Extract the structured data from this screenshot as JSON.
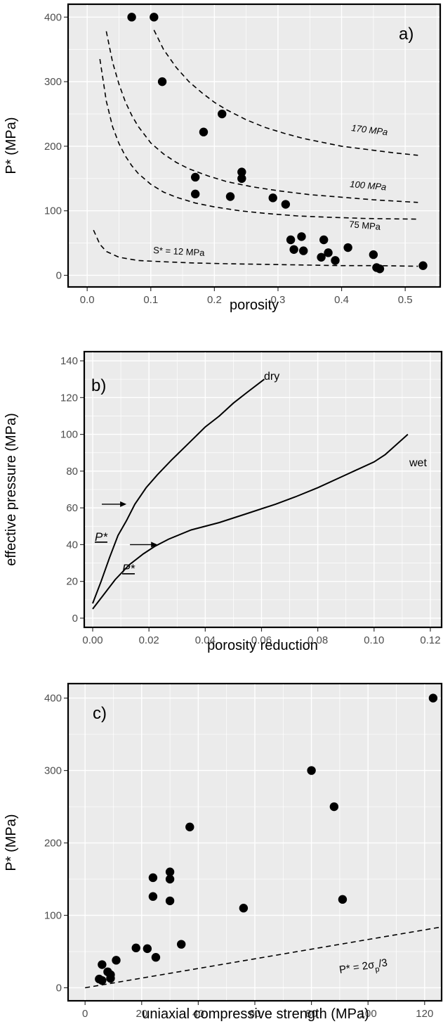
{
  "chart_data": [
    {
      "id": "a",
      "type": "scatter",
      "panel_label": "a)",
      "xlabel": "porosity",
      "ylabel": "P* (MPa)",
      "xlim": [
        -0.03,
        0.555
      ],
      "ylim": [
        -18,
        420
      ],
      "xticks": [
        0.0,
        0.1,
        0.2,
        0.3,
        0.4,
        0.5
      ],
      "xtick_labels": [
        "0.0",
        "0.1",
        "0.2",
        "0.3",
        "0.4",
        "0.5"
      ],
      "yticks": [
        0,
        100,
        200,
        300,
        400
      ],
      "ytick_labels": [
        "0",
        "100",
        "200",
        "300",
        "400"
      ],
      "grid": true,
      "points": [
        [
          0.07,
          400
        ],
        [
          0.105,
          400
        ],
        [
          0.118,
          300
        ],
        [
          0.183,
          222
        ],
        [
          0.212,
          250
        ],
        [
          0.17,
          152
        ],
        [
          0.17,
          126
        ],
        [
          0.243,
          160
        ],
        [
          0.243,
          150
        ],
        [
          0.225,
          122
        ],
        [
          0.292,
          120
        ],
        [
          0.312,
          110
        ],
        [
          0.32,
          55
        ],
        [
          0.325,
          40
        ],
        [
          0.337,
          60
        ],
        [
          0.34,
          38
        ],
        [
          0.368,
          28
        ],
        [
          0.372,
          55
        ],
        [
          0.379,
          35
        ],
        [
          0.39,
          23
        ],
        [
          0.41,
          43
        ],
        [
          0.45,
          32
        ],
        [
          0.455,
          12
        ],
        [
          0.46,
          10
        ],
        [
          0.528,
          15
        ]
      ],
      "curves": [
        {
          "label": "170 MPa",
          "x": [
            0.105,
            0.12,
            0.14,
            0.16,
            0.18,
            0.2,
            0.22,
            0.25,
            0.28,
            0.31,
            0.34,
            0.37,
            0.4,
            0.44,
            0.48,
            0.52
          ],
          "y": [
            380,
            350,
            322,
            300,
            283,
            268,
            256,
            241,
            229,
            220,
            212,
            206,
            200,
            195,
            190,
            186
          ]
        },
        {
          "label": "100 MPa",
          "x": [
            0.03,
            0.04,
            0.05,
            0.06,
            0.07,
            0.08,
            0.1,
            0.12,
            0.14,
            0.16,
            0.19,
            0.22,
            0.26,
            0.3,
            0.35,
            0.4,
            0.45,
            0.52
          ],
          "y": [
            378,
            330,
            296,
            269,
            248,
            231,
            205,
            188,
            175,
            165,
            154,
            145,
            137,
            131,
            125,
            121,
            117,
            113
          ]
        },
        {
          "label": "75 MPa",
          "x": [
            0.02,
            0.03,
            0.04,
            0.05,
            0.06,
            0.07,
            0.08,
            0.1,
            0.12,
            0.14,
            0.17,
            0.2,
            0.24,
            0.28,
            0.33,
            0.38,
            0.44,
            0.52
          ],
          "y": [
            335,
            270,
            230,
            204,
            185,
            170,
            158,
            141,
            129,
            121,
            112,
            106,
            100,
            96,
            92,
            90,
            88,
            87
          ]
        },
        {
          "label": "S* = 12 MPa",
          "x": [
            0.01,
            0.02,
            0.03,
            0.05,
            0.08,
            0.12,
            0.17,
            0.22,
            0.28,
            0.34,
            0.4,
            0.46,
            0.52
          ],
          "y": [
            70,
            48,
            37,
            28,
            23,
            21,
            19,
            18,
            17,
            16,
            15,
            15,
            14
          ]
        }
      ]
    },
    {
      "id": "b",
      "type": "line",
      "panel_label": "b)",
      "xlabel": "porosity reduction",
      "ylabel": "effective pressure (MPa)",
      "xlim": [
        -0.003,
        0.124
      ],
      "ylim": [
        -5,
        145
      ],
      "xticks": [
        0.0,
        0.02,
        0.04,
        0.06,
        0.08,
        0.1,
        0.12
      ],
      "xtick_labels": [
        "0.00",
        "0.02",
        "0.04",
        "0.06",
        "0.08",
        "0.10",
        "0.12"
      ],
      "yticks": [
        0,
        20,
        40,
        60,
        80,
        100,
        120,
        140
      ],
      "ytick_labels": [
        "0",
        "20",
        "40",
        "60",
        "80",
        "100",
        "120",
        "140"
      ],
      "grid": true,
      "series": [
        {
          "name": "dry",
          "x": [
            0.0,
            0.003,
            0.006,
            0.009,
            0.012,
            0.015,
            0.019,
            0.023,
            0.028,
            0.034,
            0.04,
            0.045,
            0.05,
            0.055,
            0.061
          ],
          "y": [
            8,
            20,
            33,
            45,
            53,
            62,
            71,
            78,
            86,
            95,
            104,
            110,
            117,
            123,
            130
          ]
        },
        {
          "name": "wet",
          "x": [
            0.0,
            0.004,
            0.008,
            0.013,
            0.018,
            0.022,
            0.027,
            0.035,
            0.045,
            0.055,
            0.065,
            0.072,
            0.08,
            0.09,
            0.1,
            0.104,
            0.112
          ],
          "y": [
            5,
            13,
            21,
            29,
            35,
            39,
            43,
            48,
            52,
            57,
            62,
            66,
            71,
            78,
            85,
            89,
            100
          ]
        }
      ],
      "annotations": [
        {
          "text": "P*",
          "arrow_from": [
            0.0,
            62
          ],
          "arrow_to": [
            0.012,
            62
          ]
        },
        {
          "text": "P*",
          "arrow_from": [
            0.01,
            40
          ],
          "arrow_to": [
            0.023,
            40
          ]
        }
      ]
    },
    {
      "id": "c",
      "type": "scatter",
      "panel_label": "c)",
      "xlabel": "uniaxial compressive strength (MPa)",
      "ylabel": "P* (MPa)",
      "xlim": [
        -6,
        126
      ],
      "ylim": [
        -18,
        420
      ],
      "xticks": [
        0,
        20,
        40,
        60,
        80,
        100,
        120
      ],
      "xtick_labels": [
        "0",
        "20",
        "40",
        "60",
        "80",
        "100",
        "120"
      ],
      "yticks": [
        0,
        100,
        200,
        300,
        400
      ],
      "ytick_labels": [
        "0",
        "100",
        "200",
        "300",
        "400"
      ],
      "grid": true,
      "points": [
        [
          123,
          400
        ],
        [
          80,
          300
        ],
        [
          88,
          250
        ],
        [
          91,
          122
        ],
        [
          37,
          222
        ],
        [
          24,
          152
        ],
        [
          24,
          126
        ],
        [
          30,
          160
        ],
        [
          30,
          150
        ],
        [
          30,
          120
        ],
        [
          56,
          110
        ],
        [
          34,
          60
        ],
        [
          18,
          55
        ],
        [
          22,
          54
        ],
        [
          25,
          42
        ],
        [
          11,
          38
        ],
        [
          6,
          32
        ],
        [
          8,
          22
        ],
        [
          9,
          18
        ],
        [
          9,
          13
        ],
        [
          5,
          12
        ],
        [
          6,
          10
        ]
      ],
      "curves": [
        {
          "label": "P* = 2σp/3",
          "x": [
            0,
            125
          ],
          "y": [
            0,
            83.3
          ]
        }
      ]
    }
  ],
  "texts": {
    "a_170": "170 MPa",
    "a_100": "100 MPa",
    "a_75": "75 MPa",
    "a_s12": "S* = 12 MPa",
    "b_dry": "dry",
    "b_wet": "wet",
    "b_pstar": "P*",
    "c_eq_main": "P* = 2σ",
    "c_eq_sub": "p",
    "c_eq_end": "/3"
  }
}
